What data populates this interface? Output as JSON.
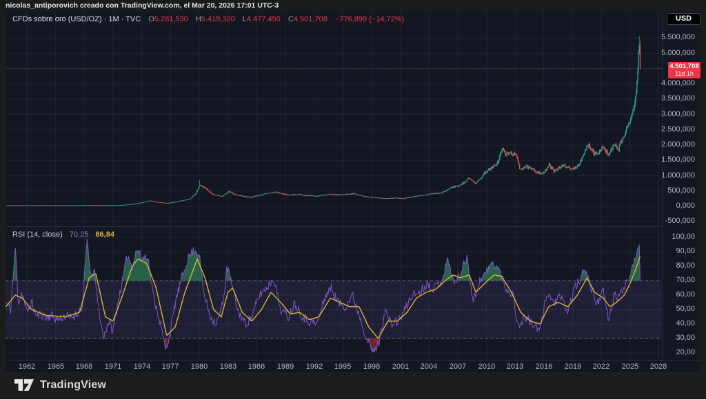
{
  "top_bar": {
    "attribution": "nicolas_antiporovich creado con TradingView.com, el Mar 20, 2026 17:01 UTC-3"
  },
  "price_legend": {
    "symbol": "CFDs sobre oro (USD/OZ) · 1M · TVC",
    "o_label": "O",
    "o": "5.281,530",
    "h_label": "H",
    "h": "5.419,320",
    "l_label": "L",
    "l": "4.477,450",
    "c_label": "C",
    "c": "4.501,708",
    "change": "−776,899 (−14,72%)"
  },
  "rsi_legend": {
    "title": "RSI (14, close)",
    "value": "70,25",
    "ma_value": "86,84"
  },
  "right_axis": {
    "currency_button": "USD",
    "price_label": {
      "value": "4.501,708",
      "countdown": "11d 1h"
    },
    "price_ticks": [
      {
        "text": "5.500,000",
        "value": 5500
      },
      {
        "text": "5.000,000",
        "value": 5000
      },
      {
        "text": "4.000,000",
        "value": 4000
      },
      {
        "text": "3.500,000",
        "value": 3500
      },
      {
        "text": "3.000,000",
        "value": 3000
      },
      {
        "text": "2.500,000",
        "value": 2500
      },
      {
        "text": "2.000,000",
        "value": 2000
      },
      {
        "text": "1.500,000",
        "value": 1500
      },
      {
        "text": "1.000,000",
        "value": 1000
      },
      {
        "text": "500,000",
        "value": 500
      },
      {
        "text": "0,000",
        "value": 0
      },
      {
        "text": "-500,000",
        "value": -500
      }
    ],
    "rsi_ticks": [
      {
        "text": "100,00",
        "value": 100
      },
      {
        "text": "90,00",
        "value": 90
      },
      {
        "text": "80,00",
        "value": 80
      },
      {
        "text": "70,00",
        "value": 70
      },
      {
        "text": "60,00",
        "value": 60
      },
      {
        "text": "50,00",
        "value": 50
      },
      {
        "text": "40,00",
        "value": 40
      },
      {
        "text": "30,00",
        "value": 30
      },
      {
        "text": "20,00",
        "value": 20
      }
    ]
  },
  "time_axis": {
    "years": [
      1962,
      1965,
      1968,
      1971,
      1974,
      1977,
      1980,
      1983,
      1986,
      1989,
      1992,
      1995,
      1998,
      2001,
      2004,
      2007,
      2010,
      2013,
      2016,
      2019,
      2022,
      2025,
      2028
    ]
  },
  "footer": {
    "brand": "TradingView"
  },
  "colors": {
    "up": "#26a69a",
    "down": "#ef5350",
    "accent_red": "#f23645",
    "rsi_line": "#7e57c2",
    "rsi_ma": "#d9b832",
    "rsi_band": "rgba(126,87,194,0.12)",
    "fill_over": "rgba(44,128,86,0.72)",
    "fill_under": "rgba(150,40,48,0.72)",
    "grid": "rgba(134,143,173,0.1)",
    "level": "rgba(178,181,190,0.45)",
    "level_mid": "rgba(178,181,190,0.22)",
    "close_line": "rgba(242,54,69,0.6)"
  },
  "chart_data": [
    {
      "type": "candlestick",
      "title": "CFDs sobre oro (USD/OZ), 1M, TVC",
      "x_start": 1959.8,
      "x_end": 2025.97,
      "x_axis_range": [
        1959.8,
        2028.3
      ],
      "y_axis_range": [
        -650,
        6050
      ],
      "last_candle": {
        "open": 5281.53,
        "high": 5419.32,
        "low": 4477.45,
        "close": 4501.708,
        "change": -776.899,
        "change_pct": -14.72
      },
      "close_keypoints": [
        [
          1959.8,
          35.2
        ],
        [
          1967.0,
          35.2
        ],
        [
          1968.0,
          39
        ],
        [
          1969.0,
          41
        ],
        [
          1970.0,
          36
        ],
        [
          1971.0,
          40
        ],
        [
          1971.8,
          43
        ],
        [
          1972.5,
          60
        ],
        [
          1973.3,
          90
        ],
        [
          1974.0,
          130
        ],
        [
          1974.9,
          185
        ],
        [
          1975.7,
          140
        ],
        [
          1976.7,
          105
        ],
        [
          1977.5,
          150
        ],
        [
          1978.3,
          200
        ],
        [
          1979.0,
          240
        ],
        [
          1979.6,
          400
        ],
        [
          1980.05,
          675
        ],
        [
          1980.6,
          620
        ],
        [
          1981.3,
          410
        ],
        [
          1982.4,
          330
        ],
        [
          1983.1,
          490
        ],
        [
          1983.8,
          380
        ],
        [
          1984.6,
          340
        ],
        [
          1985.2,
          300
        ],
        [
          1986.0,
          345
        ],
        [
          1986.8,
          400
        ],
        [
          1987.9,
          475
        ],
        [
          1988.6,
          420
        ],
        [
          1989.5,
          370
        ],
        [
          1990.3,
          395
        ],
        [
          1991.2,
          360
        ],
        [
          1992.3,
          340
        ],
        [
          1993.6,
          390
        ],
        [
          1994.5,
          380
        ],
        [
          1996.1,
          415
        ],
        [
          1997.2,
          330
        ],
        [
          1998.3,
          295
        ],
        [
          1999.6,
          260
        ],
        [
          2000.5,
          275
        ],
        [
          2001.3,
          262
        ],
        [
          2002.3,
          320
        ],
        [
          2003.3,
          360
        ],
        [
          2004.3,
          410
        ],
        [
          2005.3,
          440
        ],
        [
          2006.4,
          630
        ],
        [
          2007.0,
          660
        ],
        [
          2007.8,
          800
        ],
        [
          2008.2,
          940
        ],
        [
          2008.9,
          750
        ],
        [
          2009.5,
          960
        ],
        [
          2009.95,
          1150
        ],
        [
          2010.6,
          1250
        ],
        [
          2011.2,
          1450
        ],
        [
          2011.65,
          1880
        ],
        [
          2012.0,
          1700
        ],
        [
          2012.7,
          1740
        ],
        [
          2013.2,
          1600
        ],
        [
          2013.5,
          1230
        ],
        [
          2014.2,
          1290
        ],
        [
          2014.9,
          1180
        ],
        [
          2015.6,
          1100
        ],
        [
          2015.95,
          1065
        ],
        [
          2016.55,
          1350
        ],
        [
          2017.0,
          1160
        ],
        [
          2017.7,
          1290
        ],
        [
          2018.3,
          1330
        ],
        [
          2018.8,
          1200
        ],
        [
          2019.4,
          1300
        ],
        [
          2019.9,
          1480
        ],
        [
          2020.6,
          2030
        ],
        [
          2021.0,
          1890
        ],
        [
          2021.25,
          1730
        ],
        [
          2021.8,
          1800
        ],
        [
          2022.2,
          1960
        ],
        [
          2022.75,
          1650
        ],
        [
          2023.3,
          1990
        ],
        [
          2023.75,
          1860
        ],
        [
          2024.0,
          2050
        ],
        [
          2024.4,
          2330
        ],
        [
          2024.8,
          2650
        ],
        [
          2025.0,
          2780
        ],
        [
          2025.25,
          3100
        ],
        [
          2025.5,
          3350
        ],
        [
          2025.7,
          3950
        ],
        [
          2025.85,
          4800
        ],
        [
          2025.97,
          5281.53
        ]
      ]
    },
    {
      "type": "line",
      "name": "RSI (14, close)",
      "levels": [
        70,
        50,
        30
      ],
      "band": [
        30,
        70
      ],
      "last": {
        "rsi": 70.25,
        "ma": 86.84
      },
      "rsi_keypoints": [
        [
          1959.8,
          55
        ],
        [
          1960.3,
          50
        ],
        [
          1960.8,
          93
        ],
        [
          1961.1,
          55
        ],
        [
          1961.5,
          62
        ],
        [
          1962.0,
          48
        ],
        [
          1962.5,
          55
        ],
        [
          1963.0,
          45
        ],
        [
          1963.5,
          47
        ],
        [
          1964.0,
          44
        ],
        [
          1964.5,
          46
        ],
        [
          1965.2,
          43
        ],
        [
          1966.0,
          46
        ],
        [
          1966.5,
          44
        ],
        [
          1967.2,
          47
        ],
        [
          1967.8,
          52
        ],
        [
          1968.3,
          100
        ],
        [
          1968.7,
          70
        ],
        [
          1969.0,
          80
        ],
        [
          1969.4,
          55
        ],
        [
          1970.0,
          30
        ],
        [
          1970.5,
          42
        ],
        [
          1971.0,
          35
        ],
        [
          1971.5,
          55
        ],
        [
          1972.0,
          70
        ],
        [
          1972.5,
          88
        ],
        [
          1973.0,
          80
        ],
        [
          1973.5,
          92
        ],
        [
          1974.0,
          85
        ],
        [
          1974.6,
          88
        ],
        [
          1975.2,
          60
        ],
        [
          1975.8,
          45
        ],
        [
          1976.5,
          22
        ],
        [
          1977.0,
          35
        ],
        [
          1977.5,
          55
        ],
        [
          1978.2,
          72
        ],
        [
          1978.8,
          85
        ],
        [
          1979.5,
          92
        ],
        [
          1980.0,
          88
        ],
        [
          1980.5,
          60
        ],
        [
          1981.2,
          45
        ],
        [
          1981.8,
          40
        ],
        [
          1982.5,
          55
        ],
        [
          1982.9,
          80
        ],
        [
          1983.3,
          70
        ],
        [
          1984.0,
          50
        ],
        [
          1984.8,
          40
        ],
        [
          1985.5,
          45
        ],
        [
          1986.3,
          60
        ],
        [
          1987.0,
          65
        ],
        [
          1987.8,
          72
        ],
        [
          1988.5,
          50
        ],
        [
          1989.3,
          45
        ],
        [
          1990.0,
          55
        ],
        [
          1990.8,
          45
        ],
        [
          1991.5,
          42
        ],
        [
          1992.3,
          40
        ],
        [
          1993.2,
          60
        ],
        [
          1993.8,
          65
        ],
        [
          1994.5,
          55
        ],
        [
          1995.3,
          52
        ],
        [
          1996.0,
          60
        ],
        [
          1996.8,
          45
        ],
        [
          1997.5,
          30
        ],
        [
          1998.2,
          20
        ],
        [
          1998.8,
          28
        ],
        [
          1999.4,
          50
        ],
        [
          2000.0,
          40
        ],
        [
          2000.8,
          42
        ],
        [
          2001.5,
          50
        ],
        [
          2002.2,
          60
        ],
        [
          2003.0,
          62
        ],
        [
          2003.8,
          68
        ],
        [
          2004.5,
          65
        ],
        [
          2005.3,
          70
        ],
        [
          2006.0,
          85
        ],
        [
          2006.6,
          68
        ],
        [
          2007.3,
          75
        ],
        [
          2008.0,
          87
        ],
        [
          2008.6,
          55
        ],
        [
          2009.3,
          70
        ],
        [
          2010.0,
          76
        ],
        [
          2010.6,
          82
        ],
        [
          2011.3,
          78
        ],
        [
          2012.0,
          65
        ],
        [
          2012.8,
          60
        ],
        [
          2013.3,
          38
        ],
        [
          2014.0,
          45
        ],
        [
          2014.8,
          40
        ],
        [
          2015.6,
          35
        ],
        [
          2016.3,
          62
        ],
        [
          2017.0,
          55
        ],
        [
          2017.8,
          58
        ],
        [
          2018.5,
          48
        ],
        [
          2019.2,
          65
        ],
        [
          2019.8,
          70
        ],
        [
          2020.3,
          80
        ],
        [
          2020.9,
          65
        ],
        [
          2021.5,
          55
        ],
        [
          2022.2,
          62
        ],
        [
          2022.8,
          42
        ],
        [
          2023.3,
          60
        ],
        [
          2023.8,
          58
        ],
        [
          2024.3,
          65
        ],
        [
          2024.8,
          72
        ],
        [
          2025.2,
          78
        ],
        [
          2025.6,
          88
        ],
        [
          2025.9,
          95
        ],
        [
          2026.05,
          70.25
        ]
      ],
      "ma_keypoints": [
        [
          1959.8,
          52
        ],
        [
          1960.8,
          60
        ],
        [
          1961.5,
          58
        ],
        [
          1962.5,
          50
        ],
        [
          1964.0,
          46
        ],
        [
          1966.0,
          45
        ],
        [
          1967.5,
          48
        ],
        [
          1968.5,
          72
        ],
        [
          1969.2,
          75
        ],
        [
          1970.2,
          45
        ],
        [
          1971.0,
          42
        ],
        [
          1972.0,
          60
        ],
        [
          1973.0,
          80
        ],
        [
          1973.6,
          85
        ],
        [
          1974.5,
          82
        ],
        [
          1975.5,
          65
        ],
        [
          1976.6,
          32
        ],
        [
          1977.5,
          38
        ],
        [
          1978.5,
          62
        ],
        [
          1979.8,
          85
        ],
        [
          1980.6,
          72
        ],
        [
          1981.5,
          50
        ],
        [
          1982.3,
          45
        ],
        [
          1983.0,
          62
        ],
        [
          1983.5,
          65
        ],
        [
          1984.5,
          48
        ],
        [
          1985.5,
          42
        ],
        [
          1986.5,
          50
        ],
        [
          1987.5,
          62
        ],
        [
          1988.5,
          55
        ],
        [
          1989.5,
          47
        ],
        [
          1990.5,
          48
        ],
        [
          1991.5,
          43
        ],
        [
          1992.5,
          45
        ],
        [
          1993.7,
          58
        ],
        [
          1994.7,
          55
        ],
        [
          1995.7,
          52
        ],
        [
          1996.7,
          52
        ],
        [
          1997.7,
          38
        ],
        [
          1998.7,
          30
        ],
        [
          1999.7,
          42
        ],
        [
          2000.7,
          42
        ],
        [
          2001.7,
          48
        ],
        [
          2002.7,
          58
        ],
        [
          2003.7,
          62
        ],
        [
          2004.7,
          64
        ],
        [
          2005.7,
          70
        ],
        [
          2006.5,
          74
        ],
        [
          2007.3,
          72
        ],
        [
          2008.2,
          74
        ],
        [
          2008.9,
          62
        ],
        [
          2009.8,
          68
        ],
        [
          2010.8,
          74
        ],
        [
          2011.6,
          73
        ],
        [
          2012.6,
          62
        ],
        [
          2013.6,
          48
        ],
        [
          2014.6,
          42
        ],
        [
          2015.6,
          40
        ],
        [
          2016.5,
          52
        ],
        [
          2017.5,
          55
        ],
        [
          2018.5,
          52
        ],
        [
          2019.5,
          60
        ],
        [
          2020.5,
          72
        ],
        [
          2021.3,
          62
        ],
        [
          2022.2,
          58
        ],
        [
          2022.9,
          52
        ],
        [
          2023.6,
          55
        ],
        [
          2024.4,
          60
        ],
        [
          2025.0,
          68
        ],
        [
          2025.6,
          78
        ],
        [
          2026.05,
          86.84
        ]
      ]
    }
  ]
}
